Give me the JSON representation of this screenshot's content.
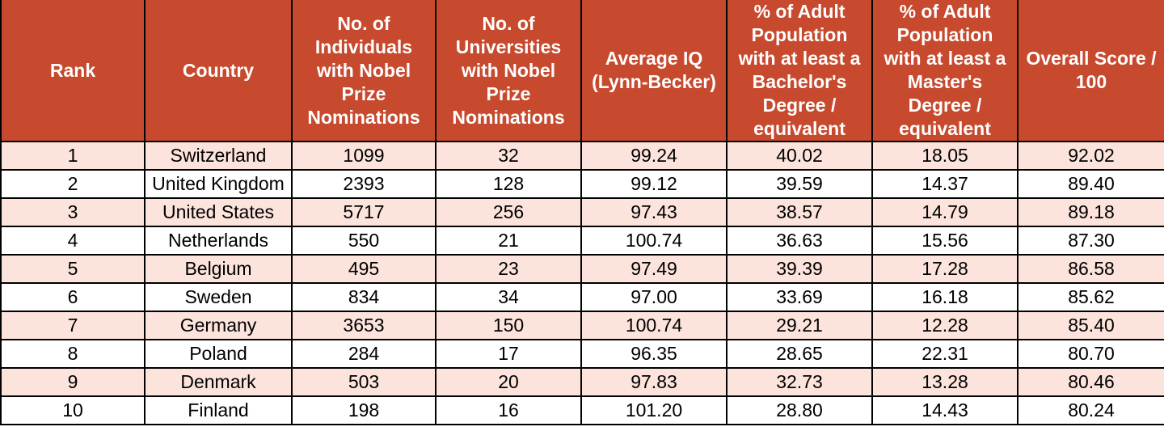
{
  "colors": {
    "header_bg": "#C7492E",
    "header_text": "#FFFFFF",
    "row_bg": "#FFFFFF",
    "row_alt_bg": "#FCE4DC",
    "border": "#000000",
    "body_text": "#000000"
  },
  "chart_data": {
    "type": "table",
    "layout_hints": {
      "grid": "on",
      "alternating_rows": "odd rows pink, even rows white",
      "header_style": "bold white on brick red"
    },
    "columns": [
      {
        "key": "rank",
        "label": "Rank",
        "label_lines": [
          "Rank"
        ]
      },
      {
        "key": "country",
        "label": "Country",
        "label_lines": [
          "Country"
        ]
      },
      {
        "key": "individuals",
        "label": "No. of Individuals with Nobel Prize Nominations",
        "label_lines": [
          "No. of",
          "Individuals",
          "with Nobel",
          "Prize",
          "Nominations"
        ]
      },
      {
        "key": "universities",
        "label": "No. of Universities with Nobel Prize Nominations",
        "label_lines": [
          "No. of",
          "Universities",
          "with Nobel",
          "Prize",
          "Nominations"
        ]
      },
      {
        "key": "average_iq",
        "label": "Average IQ (Lynn-Becker)",
        "label_lines": [
          "Average IQ",
          "(Lynn-Becker)"
        ]
      },
      {
        "key": "bachelor_pct",
        "label": "% of Adult Population with at least a Bachelor's Degree / equivalent",
        "label_lines": [
          "% of Adult",
          "Population",
          "with at least a",
          "Bachelor's",
          "Degree /",
          "equivalent"
        ]
      },
      {
        "key": "master_pct",
        "label": "% of Adult Population with at least a Master's Degree / equivalent",
        "label_lines": [
          "% of Adult",
          "Population",
          "with at least a",
          "Master's",
          "Degree /",
          "equivalent"
        ]
      },
      {
        "key": "overall_score",
        "label": "Overall Score / 100",
        "label_lines": [
          "Overall Score /",
          "100"
        ]
      }
    ],
    "rows": [
      {
        "rank": "1",
        "country": "Switzerland",
        "individuals": "1099",
        "universities": "32",
        "average_iq": "99.24",
        "bachelor_pct": "40.02",
        "master_pct": "18.05",
        "overall_score": "92.02"
      },
      {
        "rank": "2",
        "country": "United Kingdom",
        "individuals": "2393",
        "universities": "128",
        "average_iq": "99.12",
        "bachelor_pct": "39.59",
        "master_pct": "14.37",
        "overall_score": "89.40"
      },
      {
        "rank": "3",
        "country": "United States",
        "individuals": "5717",
        "universities": "256",
        "average_iq": "97.43",
        "bachelor_pct": "38.57",
        "master_pct": "14.79",
        "overall_score": "89.18"
      },
      {
        "rank": "4",
        "country": "Netherlands",
        "individuals": "550",
        "universities": "21",
        "average_iq": "100.74",
        "bachelor_pct": "36.63",
        "master_pct": "15.56",
        "overall_score": "87.30"
      },
      {
        "rank": "5",
        "country": "Belgium",
        "individuals": "495",
        "universities": "23",
        "average_iq": "97.49",
        "bachelor_pct": "39.39",
        "master_pct": "17.28",
        "overall_score": "86.58"
      },
      {
        "rank": "6",
        "country": "Sweden",
        "individuals": "834",
        "universities": "34",
        "average_iq": "97.00",
        "bachelor_pct": "33.69",
        "master_pct": "16.18",
        "overall_score": "85.62"
      },
      {
        "rank": "7",
        "country": "Germany",
        "individuals": "3653",
        "universities": "150",
        "average_iq": "100.74",
        "bachelor_pct": "29.21",
        "master_pct": "12.28",
        "overall_score": "85.40"
      },
      {
        "rank": "8",
        "country": "Poland",
        "individuals": "284",
        "universities": "17",
        "average_iq": "96.35",
        "bachelor_pct": "28.65",
        "master_pct": "22.31",
        "overall_score": "80.70"
      },
      {
        "rank": "9",
        "country": "Denmark",
        "individuals": "503",
        "universities": "20",
        "average_iq": "97.83",
        "bachelor_pct": "32.73",
        "master_pct": "13.28",
        "overall_score": "80.46"
      },
      {
        "rank": "10",
        "country": "Finland",
        "individuals": "198",
        "universities": "16",
        "average_iq": "101.20",
        "bachelor_pct": "28.80",
        "master_pct": "14.43",
        "overall_score": "80.24"
      }
    ]
  }
}
